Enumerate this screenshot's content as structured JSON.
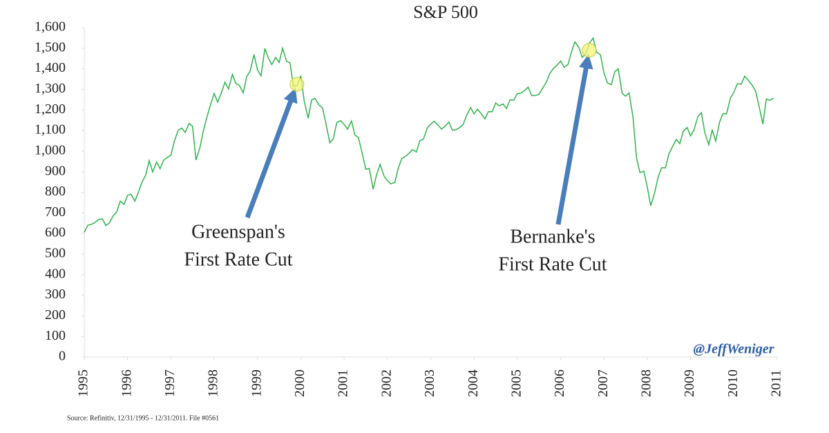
{
  "chart_data": {
    "type": "line",
    "title": "S&P 500",
    "color": "#2eb34a",
    "xlim": [
      1995,
      2011
    ],
    "xticks": [
      1995,
      1996,
      1997,
      1998,
      1999,
      2000,
      2001,
      2002,
      2003,
      2004,
      2005,
      2006,
      2007,
      2008,
      2009,
      2010,
      2011
    ],
    "ylim": [
      0,
      1600
    ],
    "yticks": [
      0,
      100,
      200,
      300,
      400,
      500,
      600,
      700,
      800,
      900,
      {
        "value": 1000,
        "label": "1,000"
      },
      {
        "value": 1100,
        "label": "1,100"
      },
      {
        "value": 1200,
        "label": "1,200"
      },
      {
        "value": 1300,
        "label": "1,300"
      },
      {
        "value": 1400,
        "label": "1,400"
      },
      {
        "value": 1500,
        "label": "1,500"
      },
      {
        "value": 1600,
        "label": "1,600"
      }
    ],
    "x": [
      1995,
      1995.08,
      1995.17,
      1995.25,
      1995.33,
      1995.42,
      1995.5,
      1995.58,
      1995.67,
      1995.75,
      1995.83,
      1995.92,
      1996,
      1996.08,
      1996.17,
      1996.25,
      1996.33,
      1996.42,
      1996.5,
      1996.58,
      1996.67,
      1996.75,
      1996.83,
      1996.92,
      1997,
      1997.08,
      1997.17,
      1997.25,
      1997.33,
      1997.42,
      1997.5,
      1997.58,
      1997.67,
      1997.75,
      1997.83,
      1997.92,
      1998,
      1998.08,
      1998.17,
      1998.25,
      1998.33,
      1998.42,
      1998.5,
      1998.58,
      1998.67,
      1998.75,
      1998.83,
      1998.92,
      1999,
      1999.08,
      1999.17,
      1999.25,
      1999.33,
      1999.42,
      1999.5,
      1999.58,
      1999.67,
      1999.75,
      1999.83,
      1999.92,
      2000,
      2000.08,
      2000.17,
      2000.25,
      2000.33,
      2000.42,
      2000.5,
      2000.58,
      2000.67,
      2000.75,
      2000.83,
      2000.92,
      2001,
      2001.08,
      2001.17,
      2001.25,
      2001.33,
      2001.42,
      2001.5,
      2001.58,
      2001.67,
      2001.75,
      2001.83,
      2001.92,
      2002,
      2002.08,
      2002.17,
      2002.25,
      2002.33,
      2002.42,
      2002.5,
      2002.58,
      2002.67,
      2002.75,
      2002.83,
      2002.92,
      2003,
      2003.08,
      2003.17,
      2003.25,
      2003.33,
      2003.42,
      2003.5,
      2003.58,
      2003.67,
      2003.75,
      2003.83,
      2003.92,
      2004,
      2004.08,
      2004.17,
      2004.25,
      2004.33,
      2004.42,
      2004.5,
      2004.58,
      2004.67,
      2004.75,
      2004.83,
      2004.92,
      2005,
      2005.08,
      2005.17,
      2005.25,
      2005.33,
      2005.42,
      2005.5,
      2005.58,
      2005.67,
      2005.75,
      2005.83,
      2005.92,
      2006,
      2006.08,
      2006.17,
      2006.25,
      2006.33,
      2006.42,
      2006.5,
      2006.58,
      2006.67,
      2006.75,
      2006.83,
      2006.92,
      2007,
      2007.08,
      2007.17,
      2007.25,
      2007.33,
      2007.42,
      2007.5,
      2007.58,
      2007.67,
      2007.75,
      2007.83,
      2007.92,
      2008,
      2008.08,
      2008.17,
      2008.25,
      2008.33,
      2008.42,
      2008.5,
      2008.58,
      2008.67,
      2008.75,
      2008.83,
      2008.92,
      2009,
      2009.08,
      2009.17,
      2009.25,
      2009.33,
      2009.42,
      2009.5,
      2009.58,
      2009.67,
      2009.75,
      2009.83,
      2009.92,
      2010,
      2010.08,
      2010.17,
      2010.25,
      2010.33,
      2010.42,
      2010.5,
      2010.58,
      2010.67,
      2010.75,
      2010.83,
      2010.92
    ],
    "values": [
      605,
      640,
      645,
      654,
      669,
      671,
      639,
      651,
      687,
      705,
      757,
      741,
      786,
      791,
      757,
      801,
      848,
      885,
      954,
      899,
      947,
      915,
      955,
      970,
      980,
      1049,
      1102,
      1112,
      1091,
      1134,
      1121,
      957,
      1017,
      1099,
      1164,
      1229,
      1280,
      1238,
      1286,
      1335,
      1302,
      1373,
      1329,
      1320,
      1283,
      1363,
      1389,
      1469,
      1394,
      1366,
      1499,
      1452,
      1421,
      1455,
      1431,
      1500,
      1437,
      1429,
      1315,
      1320,
      1366,
      1240,
      1160,
      1249,
      1256,
      1224,
      1211,
      1134,
      1041,
      1060,
      1139,
      1148,
      1130,
      1107,
      1147,
      1077,
      1067,
      987,
      912,
      916,
      815,
      886,
      936,
      880,
      856,
      841,
      848,
      917,
      964,
      975,
      990,
      1008,
      996,
      1051,
      1058,
      1112,
      1131,
      1145,
      1126,
      1107,
      1121,
      1141,
      1102,
      1104,
      1115,
      1130,
      1174,
      1212,
      1181,
      1204,
      1181,
      1157,
      1192,
      1191,
      1234,
      1220,
      1229,
      1207,
      1249,
      1248,
      1280,
      1281,
      1295,
      1311,
      1270,
      1270,
      1277,
      1304,
      1336,
      1378,
      1401,
      1418,
      1438,
      1407,
      1421,
      1482,
      1531,
      1503,
      1455,
      1474,
      1527,
      1549,
      1481,
      1468,
      1379,
      1331,
      1323,
      1386,
      1400,
      1280,
      1267,
      1283,
      1165,
      969,
      896,
      903,
      826,
      735,
      798,
      873,
      919,
      919,
      987,
      1021,
      1057,
      1036,
      1096,
      1115,
      1074,
      1104,
      1169,
      1187,
      1089,
      1031,
      1102,
      1049,
      1141,
      1183,
      1181,
      1258,
      1286,
      1327,
      1326,
      1364,
      1345,
      1321,
      1292,
      1219,
      1131,
      1253,
      1247,
      1258
    ],
    "annotations": [
      {
        "lines": [
          "Greenspan's",
          "First Rate Cut"
        ],
        "x": 1999.91,
        "y": 1325
      },
      {
        "lines": [
          "Bernanke's",
          "First Rate Cut"
        ],
        "x": 2006.66,
        "y": 1490
      }
    ],
    "watermark": "@JeffWeniger",
    "source": "Source: Refinitiv, 12/31/1995 - 12/31/2011. File #0561"
  }
}
